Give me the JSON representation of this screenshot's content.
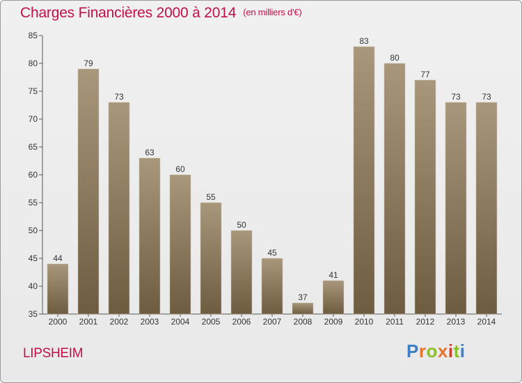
{
  "title": "Charges Financières 2000 à 2014",
  "unit": "(en milliers d'€)",
  "location": "LIPSHEIM",
  "logo": {
    "letters": [
      "P",
      "r",
      "o",
      "x",
      "i",
      "t",
      "i"
    ]
  },
  "colors": {
    "title": "#c0104a",
    "bar_light": "#a8977b",
    "bar_dark": "#6e5c40",
    "axis": "#555555"
  },
  "chart_data": {
    "type": "bar",
    "categories": [
      "2000",
      "2001",
      "2002",
      "2003",
      "2004",
      "2005",
      "2006",
      "2007",
      "2008",
      "2009",
      "2010",
      "2011",
      "2012",
      "2013",
      "2014"
    ],
    "values": [
      44,
      79,
      73,
      63,
      60,
      55,
      50,
      45,
      37,
      41,
      83,
      80,
      77,
      73,
      73
    ],
    "ylim": [
      35,
      85
    ],
    "yticks": [
      35,
      40,
      45,
      50,
      55,
      60,
      65,
      70,
      75,
      80,
      85
    ],
    "grid": false,
    "data_labels": true
  }
}
